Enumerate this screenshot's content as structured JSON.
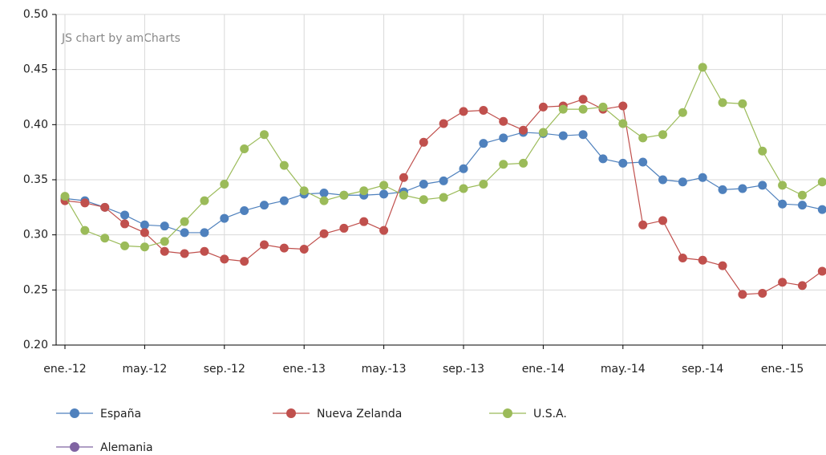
{
  "chart_data": {
    "type": "line",
    "credit": "JS chart by amCharts",
    "categories": [
      "ene.-12",
      null,
      null,
      null,
      "may.-12",
      null,
      null,
      null,
      "sep.-12",
      null,
      null,
      null,
      "ene.-13",
      null,
      null,
      null,
      "may.-13",
      null,
      null,
      null,
      "sep.-13",
      null,
      null,
      null,
      "ene.-14",
      null,
      null,
      null,
      "may.-14",
      null,
      null,
      null,
      "sep.-14",
      null,
      null,
      null,
      "ene.-15",
      null,
      null
    ],
    "ylim": [
      0.2,
      0.5
    ],
    "yticks": [
      {
        "value": 0.2,
        "label": "0.20"
      },
      {
        "value": 0.25,
        "label": "0.25"
      },
      {
        "value": 0.3,
        "label": "0.30"
      },
      {
        "value": 0.35,
        "label": "0.35"
      },
      {
        "value": 0.4,
        "label": "0.40"
      },
      {
        "value": 0.45,
        "label": "0.45"
      },
      {
        "value": 0.5,
        "label": "0.50"
      }
    ],
    "grid": true,
    "legend": "bottom",
    "series": [
      {
        "name": "España",
        "color": "#4f81bd",
        "values": [
          0.333,
          0.331,
          0.325,
          0.318,
          0.309,
          0.308,
          0.302,
          0.302,
          0.315,
          0.322,
          0.327,
          0.331,
          0.337,
          0.338,
          0.336,
          0.336,
          0.337,
          0.339,
          0.346,
          0.349,
          0.36,
          0.383,
          0.388,
          0.393,
          0.392,
          0.39,
          0.391,
          0.369,
          0.365,
          0.366,
          0.35,
          0.348,
          0.352,
          0.341,
          0.342,
          0.345,
          0.328,
          0.327,
          0.323
        ]
      },
      {
        "name": "Nueva Zelanda",
        "color": "#c0504d",
        "values": [
          0.331,
          0.329,
          0.325,
          0.31,
          0.302,
          0.285,
          0.283,
          0.285,
          0.278,
          0.276,
          0.291,
          0.288,
          0.287,
          0.301,
          0.306,
          0.312,
          0.304,
          0.352,
          0.384,
          0.401,
          0.412,
          0.413,
          0.403,
          0.395,
          0.416,
          0.417,
          0.423,
          0.414,
          0.417,
          0.309,
          0.313,
          0.279,
          0.277,
          0.272,
          0.246,
          0.247,
          0.257,
          0.254,
          0.267
        ]
      },
      {
        "name": "U.S.A.",
        "color": "#9bbb59",
        "values": [
          0.335,
          0.304,
          0.297,
          0.29,
          0.289,
          0.294,
          0.312,
          0.331,
          0.346,
          0.378,
          0.391,
          0.363,
          0.34,
          0.331,
          0.336,
          0.34,
          0.345,
          0.336,
          0.332,
          0.334,
          0.342,
          0.346,
          0.364,
          0.365,
          0.393,
          0.414,
          0.414,
          0.416,
          0.401,
          0.388,
          0.391,
          0.411,
          0.452,
          0.42,
          0.419,
          0.376,
          0.345,
          0.336,
          0.348
        ]
      },
      {
        "name": "Alemania",
        "color": "#8064a2",
        "values": [
          null,
          null,
          null,
          null,
          null,
          null,
          null,
          null,
          null,
          null,
          null,
          null,
          null,
          null,
          null,
          null,
          null,
          null,
          null,
          null,
          null,
          null,
          null,
          null,
          null,
          null,
          null,
          null,
          null,
          null,
          null,
          null,
          null,
          null,
          null,
          null,
          null,
          null,
          null
        ]
      }
    ]
  }
}
